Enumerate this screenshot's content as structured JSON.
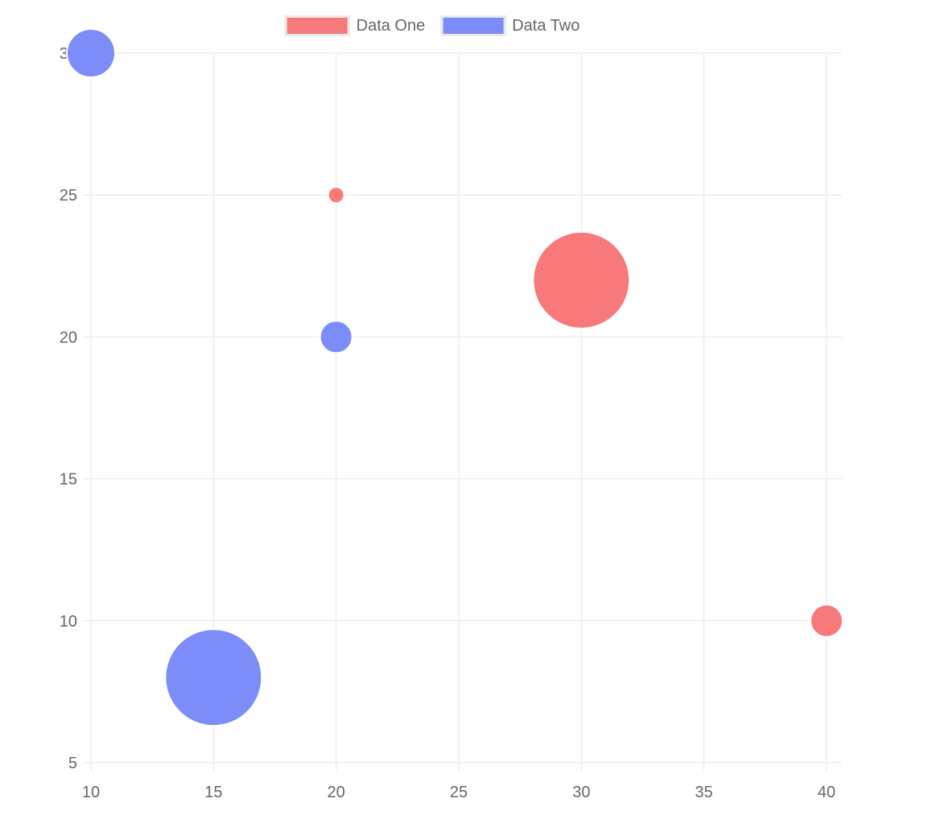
{
  "chart_data": {
    "type": "bubble",
    "title": "",
    "xlabel": "",
    "ylabel": "",
    "legend_position": "top",
    "grid": true,
    "series": [
      {
        "name": "Data One",
        "color": "#f87979",
        "points": [
          {
            "x": 20,
            "y": 25,
            "r": 10
          },
          {
            "x": 30,
            "y": 22,
            "r": 60
          },
          {
            "x": 40,
            "y": 10,
            "r": 20
          }
        ]
      },
      {
        "name": "Data Two",
        "color": "#7c8cf8",
        "points": [
          {
            "x": 10,
            "y": 30,
            "r": 30
          },
          {
            "x": 20,
            "y": 20,
            "r": 20
          },
          {
            "x": 15,
            "y": 8,
            "r": 60
          }
        ]
      }
    ],
    "x_axis": {
      "min": 10,
      "max": 40,
      "ticks": [
        10,
        15,
        20,
        25,
        30,
        35,
        40
      ]
    },
    "y_axis": {
      "min": 5,
      "max": 30,
      "ticks": [
        5,
        10,
        15,
        20,
        25,
        30
      ]
    },
    "colors": {
      "background": "#ffffff",
      "grid": "#e6e6e6",
      "tick_label": "#666666",
      "bubble_border": "#ffffff",
      "legend_swatch_border": "#ebebeb"
    }
  }
}
